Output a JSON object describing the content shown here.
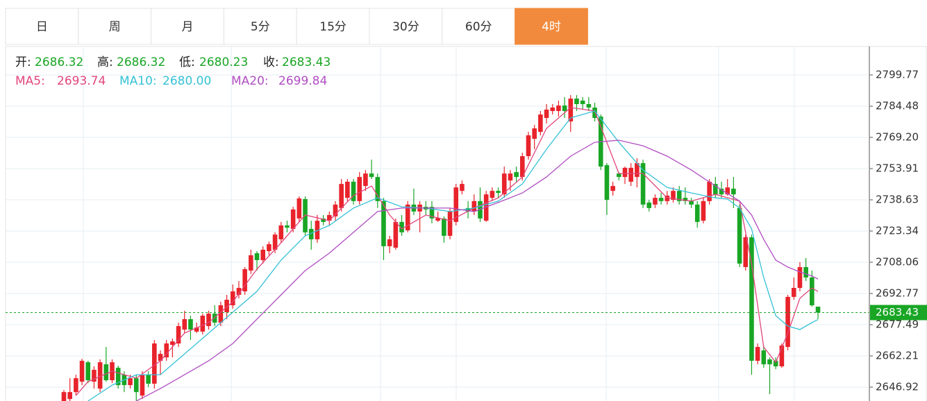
{
  "chart_data": {
    "type": "candlestick",
    "tabs": [
      {
        "label": "日",
        "selected": false
      },
      {
        "label": "周",
        "selected": false
      },
      {
        "label": "月",
        "selected": false
      },
      {
        "label": "5分",
        "selected": false
      },
      {
        "label": "15分",
        "selected": false
      },
      {
        "label": "30分",
        "selected": false
      },
      {
        "label": "60分",
        "selected": false
      },
      {
        "label": "4时",
        "selected": true
      }
    ],
    "ohlc_labels": [
      "开:",
      "高:",
      "低:",
      "收:"
    ],
    "up_color": "#e8232b",
    "down_color": "#19a625",
    "ylim": [
      2640.13,
      2813.36
    ],
    "yticks": [
      2646.92,
      2662.21,
      2677.49,
      2692.77,
      2708.06,
      2723.34,
      2738.63,
      2753.91,
      {
        "value": 2769.2,
        "label": "2769.20"
      },
      2784.48,
      2799.77
    ],
    "grid": true,
    "candles": [
      [
        2640.1,
        2645.5,
        2640.1,
        2644.5
      ],
      [
        2641.1,
        2651.3,
        2640.1,
        2644.5
      ],
      [
        2644.5,
        2653.0,
        2642.8,
        2651.3
      ],
      [
        2649.6,
        2660.8,
        2647.9,
        2659.8
      ],
      [
        2659.1,
        2659.8,
        2648.9,
        2650.3
      ],
      [
        2649.6,
        2657.1,
        2646.2,
        2655.4
      ],
      [
        2646.2,
        2660.5,
        2644.5,
        2659.1
      ],
      [
        2658.1,
        2666.6,
        2649.6,
        2650.3
      ],
      [
        2650.3,
        2660.5,
        2648.9,
        2659.1
      ],
      [
        2656.4,
        2657.4,
        2646.2,
        2647.9
      ],
      [
        2653.0,
        2654.7,
        2644.5,
        2647.9
      ],
      [
        2647.9,
        2653.0,
        2646.2,
        2651.3
      ],
      [
        2651.3,
        2653.0,
        2640.1,
        2644.5
      ],
      [
        2642.8,
        2654.7,
        2641.1,
        2653.0
      ],
      [
        2653.0,
        2654.7,
        2646.9,
        2648.6
      ],
      [
        2648.6,
        2670.0,
        2646.2,
        2668.3
      ],
      [
        2659.8,
        2664.9,
        2653.0,
        2663.2
      ],
      [
        2661.5,
        2670.0,
        2659.8,
        2668.3
      ],
      [
        2667.6,
        2670.7,
        2661.5,
        2669.3
      ],
      [
        2668.3,
        2678.5,
        2666.6,
        2676.8
      ],
      [
        2675.1,
        2684.3,
        2673.4,
        2680.2
      ],
      [
        2680.2,
        2681.9,
        2670.0,
        2675.1
      ],
      [
        2674.1,
        2678.5,
        2673.4,
        2676.1
      ],
      [
        2674.1,
        2682.9,
        2672.7,
        2681.9
      ],
      [
        2676.8,
        2684.3,
        2675.1,
        2682.9
      ],
      [
        2682.9,
        2687.0,
        2676.8,
        2678.5
      ],
      [
        2678.5,
        2688.7,
        2676.8,
        2687.0
      ],
      [
        2683.6,
        2692.1,
        2680.2,
        2689.7
      ],
      [
        2687.0,
        2697.2,
        2685.3,
        2693.8
      ],
      [
        2692.1,
        2698.9,
        2690.4,
        2695.5
      ],
      [
        2693.8,
        2705.7,
        2692.1,
        2704.7
      ],
      [
        2704.0,
        2714.2,
        2702.3,
        2711.5
      ],
      [
        2712.5,
        2713.5,
        2704.0,
        2709.1
      ],
      [
        2709.1,
        2715.9,
        2707.4,
        2714.2
      ],
      [
        2713.5,
        2718.2,
        2711.5,
        2716.9
      ],
      [
        2714.2,
        2722.7,
        2712.5,
        2721.6
      ],
      [
        2719.3,
        2727.8,
        2717.6,
        2726.1
      ],
      [
        2726.1,
        2728.4,
        2722.7,
        2725.0
      ],
      [
        2724.4,
        2735.2,
        2722.7,
        2733.9
      ],
      [
        2729.5,
        2740.3,
        2727.8,
        2739.3
      ],
      [
        2739.0,
        2740.3,
        2721.0,
        2722.7
      ],
      [
        2724.4,
        2728.4,
        2714.2,
        2719.3
      ],
      [
        2719.3,
        2731.2,
        2717.6,
        2728.4
      ],
      [
        2729.5,
        2731.2,
        2726.1,
        2727.8
      ],
      [
        2728.4,
        2732.9,
        2726.1,
        2731.2
      ],
      [
        2730.5,
        2738.0,
        2728.4,
        2736.3
      ],
      [
        2734.6,
        2748.8,
        2732.9,
        2746.4
      ],
      [
        2739.6,
        2748.8,
        2738.0,
        2747.5
      ],
      [
        2747.5,
        2748.8,
        2736.3,
        2738.0
      ],
      [
        2738.0,
        2752.2,
        2736.3,
        2749.8
      ],
      [
        2745.4,
        2753.2,
        2743.0,
        2751.5
      ],
      [
        2751.5,
        2758.3,
        2748.8,
        2749.8
      ],
      [
        2749.8,
        2751.5,
        2734.6,
        2738.0
      ],
      [
        2738.0,
        2739.6,
        2709.1,
        2715.9
      ],
      [
        2715.9,
        2721.0,
        2712.5,
        2719.3
      ],
      [
        2715.2,
        2729.5,
        2714.2,
        2727.8
      ],
      [
        2727.8,
        2731.2,
        2721.0,
        2722.7
      ],
      [
        2723.7,
        2738.0,
        2722.7,
        2736.3
      ],
      [
        2736.3,
        2744.1,
        2731.2,
        2732.9
      ],
      [
        2732.9,
        2738.0,
        2722.7,
        2736.3
      ],
      [
        2735.2,
        2738.0,
        2731.2,
        2733.9
      ],
      [
        2735.2,
        2738.0,
        2727.1,
        2729.5
      ],
      [
        2728.4,
        2732.9,
        2727.8,
        2729.8
      ],
      [
        2729.5,
        2730.5,
        2717.6,
        2721.0
      ],
      [
        2721.0,
        2734.6,
        2719.3,
        2732.9
      ],
      [
        2727.8,
        2746.4,
        2726.1,
        2744.7
      ],
      [
        2743.0,
        2748.1,
        2741.3,
        2746.4
      ],
      [
        2734.6,
        2738.0,
        2729.5,
        2732.9
      ],
      [
        2732.9,
        2741.3,
        2731.2,
        2738.0
      ],
      [
        2738.0,
        2744.7,
        2727.8,
        2729.5
      ],
      [
        2728.4,
        2743.0,
        2727.8,
        2741.3
      ],
      [
        2739.6,
        2744.7,
        2738.0,
        2743.0
      ],
      [
        2743.0,
        2744.7,
        2739.6,
        2742.0
      ],
      [
        2741.3,
        2754.9,
        2739.6,
        2751.5
      ],
      [
        2748.1,
        2753.2,
        2743.0,
        2751.5
      ],
      [
        2752.2,
        2754.9,
        2747.5,
        2749.8
      ],
      [
        2749.8,
        2761.7,
        2748.1,
        2760.0
      ],
      [
        2760.0,
        2771.9,
        2758.3,
        2770.2
      ],
      [
        2768.5,
        2775.3,
        2763.4,
        2773.6
      ],
      [
        2771.9,
        2782.1,
        2770.2,
        2780.4
      ],
      [
        2778.7,
        2785.5,
        2776.0,
        2782.8
      ],
      [
        2782.1,
        2785.5,
        2780.4,
        2783.8
      ],
      [
        2782.1,
        2787.2,
        2779.4,
        2784.8
      ],
      [
        2784.8,
        2788.9,
        2778.7,
        2782.1
      ],
      [
        2777.0,
        2789.9,
        2771.9,
        2788.2
      ],
      [
        2788.2,
        2789.9,
        2782.1,
        2785.5
      ],
      [
        2787.2,
        2788.9,
        2782.8,
        2785.5
      ],
      [
        2785.5,
        2788.9,
        2782.1,
        2783.8
      ],
      [
        2783.8,
        2786.2,
        2777.0,
        2778.7
      ],
      [
        2779.4,
        2780.4,
        2753.2,
        2754.9
      ],
      [
        2755.6,
        2756.6,
        2731.2,
        2738.6
      ],
      [
        2743.0,
        2747.5,
        2740.7,
        2745.4
      ],
      [
        2751.5,
        2752.2,
        2748.1,
        2749.8
      ],
      [
        2749.8,
        2754.9,
        2746.4,
        2754.3
      ],
      [
        2747.5,
        2756.6,
        2745.4,
        2754.3
      ],
      [
        2749.8,
        2759.0,
        2744.7,
        2756.6
      ],
      [
        2756.6,
        2758.3,
        2734.6,
        2736.3
      ],
      [
        2737.3,
        2738.6,
        2732.9,
        2734.6
      ],
      [
        2736.3,
        2741.3,
        2734.6,
        2739.6
      ],
      [
        2739.6,
        2742.0,
        2736.3,
        2738.0
      ],
      [
        2738.0,
        2743.0,
        2736.3,
        2740.7
      ],
      [
        2738.6,
        2744.7,
        2737.3,
        2743.0
      ],
      [
        2743.0,
        2745.4,
        2736.3,
        2738.0
      ],
      [
        2739.6,
        2744.7,
        2736.3,
        2738.0
      ],
      [
        2738.0,
        2739.6,
        2734.6,
        2736.3
      ],
      [
        2736.3,
        2738.0,
        2725.0,
        2727.8
      ],
      [
        2728.4,
        2739.6,
        2727.1,
        2738.0
      ],
      [
        2738.0,
        2748.8,
        2736.3,
        2747.5
      ],
      [
        2746.4,
        2749.8,
        2739.6,
        2741.3
      ],
      [
        2744.1,
        2747.5,
        2739.6,
        2741.3
      ],
      [
        2741.3,
        2748.8,
        2740.7,
        2744.7
      ],
      [
        2744.1,
        2749.8,
        2734.6,
        2741.3
      ],
      [
        2734.6,
        2736.3,
        2705.7,
        2707.4
      ],
      [
        2705.7,
        2721.6,
        2704.0,
        2720.3
      ],
      [
        2720.3,
        2721.6,
        2653.0,
        2659.8
      ],
      [
        2659.8,
        2668.3,
        2658.1,
        2666.6
      ],
      [
        2664.9,
        2667.3,
        2656.4,
        2658.1
      ],
      [
        2660.5,
        2661.5,
        2643.5,
        2658.1
      ],
      [
        2659.8,
        2661.5,
        2655.7,
        2657.1
      ],
      [
        2657.1,
        2668.3,
        2656.4,
        2667.3
      ],
      [
        2666.6,
        2692.1,
        2664.9,
        2691.1
      ],
      [
        2691.1,
        2700.6,
        2689.7,
        2695.5
      ],
      [
        2695.5,
        2708.1,
        2693.8,
        2705.7
      ],
      [
        2705.7,
        2710.1,
        2698.9,
        2700.6
      ],
      [
        2700.6,
        2704.0,
        2686.3,
        2687.0
      ],
      [
        2686.32,
        2686.32,
        2680.23,
        2683.43
      ]
    ],
    "series": [
      {
        "name": "MA5:",
        "color": "#e2457d",
        "value_label": "2693.74",
        "x": [
          2,
          4,
          8,
          12,
          16,
          20,
          24,
          28,
          32,
          36,
          40,
          44,
          48,
          51,
          54,
          56,
          60,
          64,
          68,
          72,
          76,
          80,
          84,
          88,
          90,
          92,
          96,
          100,
          104,
          108,
          112,
          114,
          116,
          118,
          120,
          122,
          124,
          125
        ],
        "values": [
          2642.8,
          2649.6,
          2654.7,
          2651.3,
          2659.8,
          2673.4,
          2678.5,
          2688.7,
          2704.7,
          2717.6,
          2731.2,
          2728.4,
          2740.7,
          2745.4,
          2731.2,
          2724.4,
          2731.2,
          2728.4,
          2734.6,
          2739.6,
          2749.8,
          2773.6,
          2783.8,
          2782.1,
          2766.8,
          2751.5,
          2751.5,
          2739.6,
          2738.0,
          2741.3,
          2738.0,
          2707.4,
          2666.6,
          2659.1,
          2673.4,
          2690.4,
          2695.5,
          2693.74
        ]
      },
      {
        "name": "MA10:",
        "color": "#35c1d6",
        "value_label": "2680.00",
        "x": [
          4,
          8,
          12,
          16,
          20,
          24,
          28,
          32,
          36,
          40,
          44,
          48,
          52,
          56,
          60,
          64,
          68,
          72,
          76,
          80,
          84,
          88,
          92,
          96,
          100,
          104,
          108,
          110,
          112,
          114,
          116,
          118,
          120,
          122,
          124,
          125
        ],
        "values": [
          2640.1,
          2647.9,
          2653.0,
          2653.0,
          2663.2,
          2673.4,
          2683.6,
          2693.8,
          2709.1,
          2721.0,
          2726.1,
          2734.6,
          2739.6,
          2735.2,
          2734.6,
          2732.9,
          2734.6,
          2738.0,
          2746.4,
          2763.4,
          2778.7,
          2782.1,
          2766.8,
          2753.2,
          2744.7,
          2742.0,
          2739.6,
          2739.0,
          2734.6,
          2724.4,
          2700.6,
          2681.9,
          2676.8,
          2675.1,
          2678.5,
          2680.0
        ]
      },
      {
        "name": "MA20:",
        "color": "#b04dc2",
        "value_label": "2699.84",
        "x": [
          12,
          16,
          20,
          24,
          28,
          32,
          36,
          40,
          44,
          48,
          52,
          56,
          60,
          64,
          68,
          72,
          76,
          80,
          84,
          88,
          92,
          96,
          100,
          104,
          108,
          112,
          114,
          116,
          118,
          120,
          122,
          124,
          125
        ],
        "values": [
          2640.1,
          2646.2,
          2653.0,
          2659.8,
          2668.3,
          2680.2,
          2692.1,
          2704.0,
          2712.5,
          2722.7,
          2732.9,
          2734.6,
          2734.6,
          2734.6,
          2732.9,
          2737.3,
          2742.0,
          2749.8,
          2760.0,
          2766.8,
          2767.8,
          2765.1,
          2760.0,
          2753.2,
          2745.4,
          2738.0,
          2731.2,
          2719.3,
          2709.1,
          2705.7,
          2703.3,
          2701.3,
          2699.84
        ]
      }
    ]
  }
}
